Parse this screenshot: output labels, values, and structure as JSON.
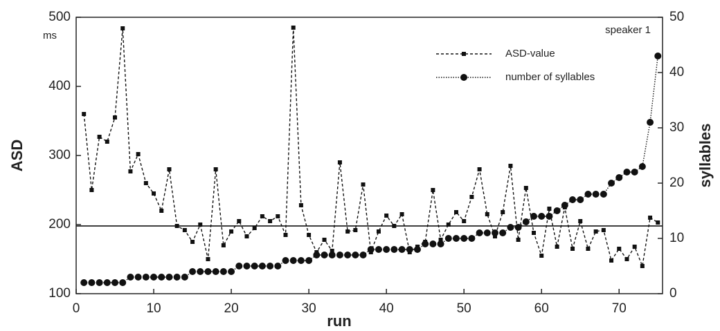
{
  "chart_data": {
    "type": "line",
    "annotation": "speaker 1",
    "ylabel_unit": "ms",
    "xlabel": "run",
    "ylabel": "ASD",
    "y2label": "syllables",
    "x": [
      1,
      2,
      3,
      4,
      5,
      6,
      7,
      8,
      9,
      10,
      11,
      12,
      13,
      14,
      15,
      16,
      17,
      18,
      19,
      20,
      21,
      22,
      23,
      24,
      25,
      26,
      27,
      28,
      29,
      30,
      31,
      32,
      33,
      34,
      35,
      36,
      37,
      38,
      39,
      40,
      41,
      42,
      43,
      44,
      45,
      46,
      47,
      48,
      49,
      50,
      51,
      52,
      53,
      54,
      55,
      56,
      57,
      58,
      59,
      60,
      61,
      62,
      63,
      64,
      65,
      66,
      67,
      68,
      69,
      70,
      71,
      72,
      73,
      74,
      75
    ],
    "series": [
      {
        "name": "ASD-value",
        "color": "#111111",
        "axis": "y",
        "values": [
          360,
          250,
          327,
          320,
          355,
          484,
          277,
          302,
          260,
          245,
          220,
          280,
          198,
          192,
          175,
          200,
          150,
          280,
          170,
          190,
          205,
          183,
          195,
          212,
          205,
          212,
          185,
          485,
          228,
          185,
          160,
          178,
          162,
          290,
          190,
          192,
          258,
          160,
          190,
          213,
          198,
          215,
          160,
          168,
          175,
          250,
          178,
          200,
          218,
          205,
          240,
          280,
          215,
          183,
          218,
          285,
          178,
          253,
          188,
          155,
          223,
          168,
          225,
          165,
          205,
          165,
          190,
          192,
          148,
          165,
          150,
          168,
          140,
          210,
          203
        ]
      },
      {
        "name": "number of syllables",
        "color": "#111111",
        "axis": "y2",
        "values": [
          2,
          2,
          2,
          2,
          2,
          2,
          3,
          3,
          3,
          3,
          3,
          3,
          3,
          3,
          4,
          4,
          4,
          4,
          4,
          4,
          5,
          5,
          5,
          5,
          5,
          5,
          6,
          6,
          6,
          6,
          7,
          7,
          7,
          7,
          7,
          7,
          7,
          8,
          8,
          8,
          8,
          8,
          8,
          8,
          9,
          9,
          9,
          10,
          10,
          10,
          10,
          11,
          11,
          11,
          11,
          12,
          12,
          13,
          14,
          14,
          14,
          15,
          16,
          17,
          17,
          18,
          18,
          18,
          20,
          21,
          22,
          22,
          23,
          31,
          43
        ]
      }
    ],
    "reference_line": 198,
    "xlim": [
      0,
      75.6
    ],
    "xticks": [
      0,
      10,
      20,
      30,
      40,
      50,
      60,
      70
    ],
    "ylim": [
      100,
      500
    ],
    "yticks": [
      100,
      200,
      300,
      400,
      500
    ],
    "y2lim": [
      0,
      50
    ],
    "y2ticks": [
      0,
      10,
      20,
      30,
      40,
      50
    ]
  }
}
